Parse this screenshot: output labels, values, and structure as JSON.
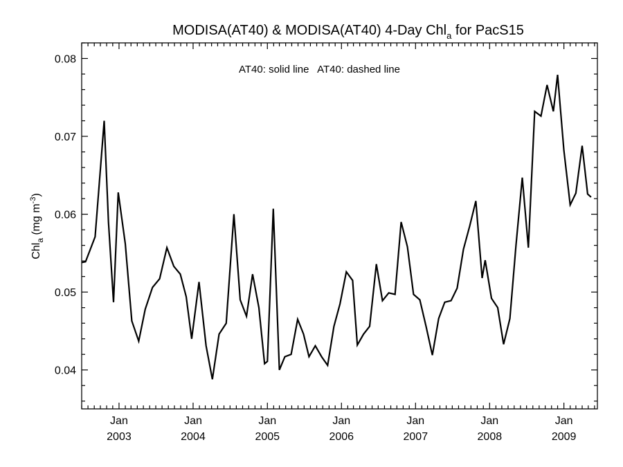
{
  "chart_data": {
    "type": "line",
    "title": "MODISA(AT40) & MODISA(AT40) 4-Day Chl",
    "title_sub": "a",
    "title_suffix": " for PacS15",
    "ylabel_main": "Chl",
    "ylabel_sub": "a",
    "ylabel_units": " (mg m",
    "ylabel_sup": "-3",
    "ylabel_close": ")",
    "annotation": "AT40: solid line   AT40: dashed line",
    "ylim": [
      0.035,
      0.082
    ],
    "yticks": [
      0.04,
      0.05,
      0.06,
      0.07,
      0.08
    ],
    "ytick_labels": [
      "0.04",
      "0.05",
      "0.06",
      "0.07",
      "0.08"
    ],
    "xlim": [
      "2002-07-01",
      "2009-06-15"
    ],
    "xticks": [
      {
        "date": "2003-01-01",
        "month": "Jan",
        "year": "2003"
      },
      {
        "date": "2004-01-01",
        "month": "Jan",
        "year": "2004"
      },
      {
        "date": "2005-01-01",
        "month": "Jan",
        "year": "2005"
      },
      {
        "date": "2006-01-01",
        "month": "Jan",
        "year": "2006"
      },
      {
        "date": "2007-01-01",
        "month": "Jan",
        "year": "2007"
      },
      {
        "date": "2008-01-01",
        "month": "Jan",
        "year": "2008"
      },
      {
        "date": "2009-01-01",
        "month": "Jan",
        "year": "2009"
      }
    ],
    "grid": false,
    "series": [
      {
        "line_style": "solid",
        "color": "#000000",
        "points": [
          [
            "2002-07-01",
            0.0538
          ],
          [
            "2002-07-20",
            0.0539
          ],
          [
            "2002-09-05",
            0.0571
          ],
          [
            "2002-10-20",
            0.072
          ],
          [
            "2002-11-10",
            0.059
          ],
          [
            "2002-12-05",
            0.0487
          ],
          [
            "2002-12-28",
            0.0628
          ],
          [
            "2003-02-01",
            0.0562
          ],
          [
            "2003-03-05",
            0.0463
          ],
          [
            "2003-04-08",
            0.0437
          ],
          [
            "2003-05-10",
            0.0478
          ],
          [
            "2003-06-15",
            0.0506
          ],
          [
            "2003-07-20",
            0.0517
          ],
          [
            "2003-08-25",
            0.0557
          ],
          [
            "2003-09-28",
            0.0533
          ],
          [
            "2003-10-30",
            0.0523
          ],
          [
            "2003-11-28",
            0.0494
          ],
          [
            "2003-12-25",
            0.044
          ],
          [
            "2004-01-30",
            0.0513
          ],
          [
            "2004-03-05",
            0.0431
          ],
          [
            "2004-04-05",
            0.0388
          ],
          [
            "2004-05-08",
            0.0446
          ],
          [
            "2004-06-12",
            0.046
          ],
          [
            "2004-07-20",
            0.06
          ],
          [
            "2004-08-20",
            0.049
          ],
          [
            "2004-09-20",
            0.0469
          ],
          [
            "2004-10-20",
            0.0523
          ],
          [
            "2004-11-20",
            0.048
          ],
          [
            "2004-12-18",
            0.0408
          ],
          [
            "2005-01-01",
            0.0411
          ],
          [
            "2005-01-30",
            0.0607
          ],
          [
            "2005-03-01",
            0.04
          ],
          [
            "2005-03-28",
            0.0417
          ],
          [
            "2005-04-28",
            0.042
          ],
          [
            "2005-05-30",
            0.0465
          ],
          [
            "2005-06-28",
            0.0446
          ],
          [
            "2005-07-25",
            0.0417
          ],
          [
            "2005-08-25",
            0.0431
          ],
          [
            "2005-09-25",
            0.0417
          ],
          [
            "2005-10-25",
            0.0406
          ],
          [
            "2005-11-25",
            0.0456
          ],
          [
            "2005-12-25",
            0.0485
          ],
          [
            "2006-01-25",
            0.0526
          ],
          [
            "2006-02-25",
            0.0515
          ],
          [
            "2006-03-20",
            0.0432
          ],
          [
            "2006-04-20",
            0.0446
          ],
          [
            "2006-05-20",
            0.0456
          ],
          [
            "2006-06-22",
            0.0536
          ],
          [
            "2006-07-22",
            0.0489
          ],
          [
            "2006-08-22",
            0.0499
          ],
          [
            "2006-09-22",
            0.0497
          ],
          [
            "2006-10-22",
            0.059
          ],
          [
            "2006-11-22",
            0.0558
          ],
          [
            "2006-12-22",
            0.0497
          ],
          [
            "2007-01-22",
            0.049
          ],
          [
            "2007-02-22",
            0.0456
          ],
          [
            "2007-03-25",
            0.0419
          ],
          [
            "2007-04-25",
            0.0466
          ],
          [
            "2007-05-25",
            0.0487
          ],
          [
            "2007-06-25",
            0.0489
          ],
          [
            "2007-07-25",
            0.0505
          ],
          [
            "2007-08-25",
            0.0555
          ],
          [
            "2007-09-25",
            0.0585
          ],
          [
            "2007-10-25",
            0.0617
          ],
          [
            "2007-11-25",
            0.0518
          ],
          [
            "2007-12-10",
            0.0541
          ],
          [
            "2008-01-10",
            0.0492
          ],
          [
            "2008-02-10",
            0.048
          ],
          [
            "2008-03-10",
            0.0433
          ],
          [
            "2008-04-10",
            0.0466
          ],
          [
            "2008-05-10",
            0.056
          ],
          [
            "2008-06-10",
            0.0647
          ],
          [
            "2008-07-10",
            0.0557
          ],
          [
            "2008-08-10",
            0.0732
          ],
          [
            "2008-09-10",
            0.0726
          ],
          [
            "2008-10-10",
            0.0766
          ],
          [
            "2008-11-10",
            0.0732
          ],
          [
            "2008-12-01",
            0.0779
          ],
          [
            "2009-01-01",
            0.0682
          ],
          [
            "2009-02-01",
            0.0612
          ],
          [
            "2009-03-01",
            0.0627
          ],
          [
            "2009-04-01",
            0.0688
          ],
          [
            "2009-04-28",
            0.0626
          ],
          [
            "2009-05-15",
            0.0622
          ]
        ]
      }
    ]
  }
}
